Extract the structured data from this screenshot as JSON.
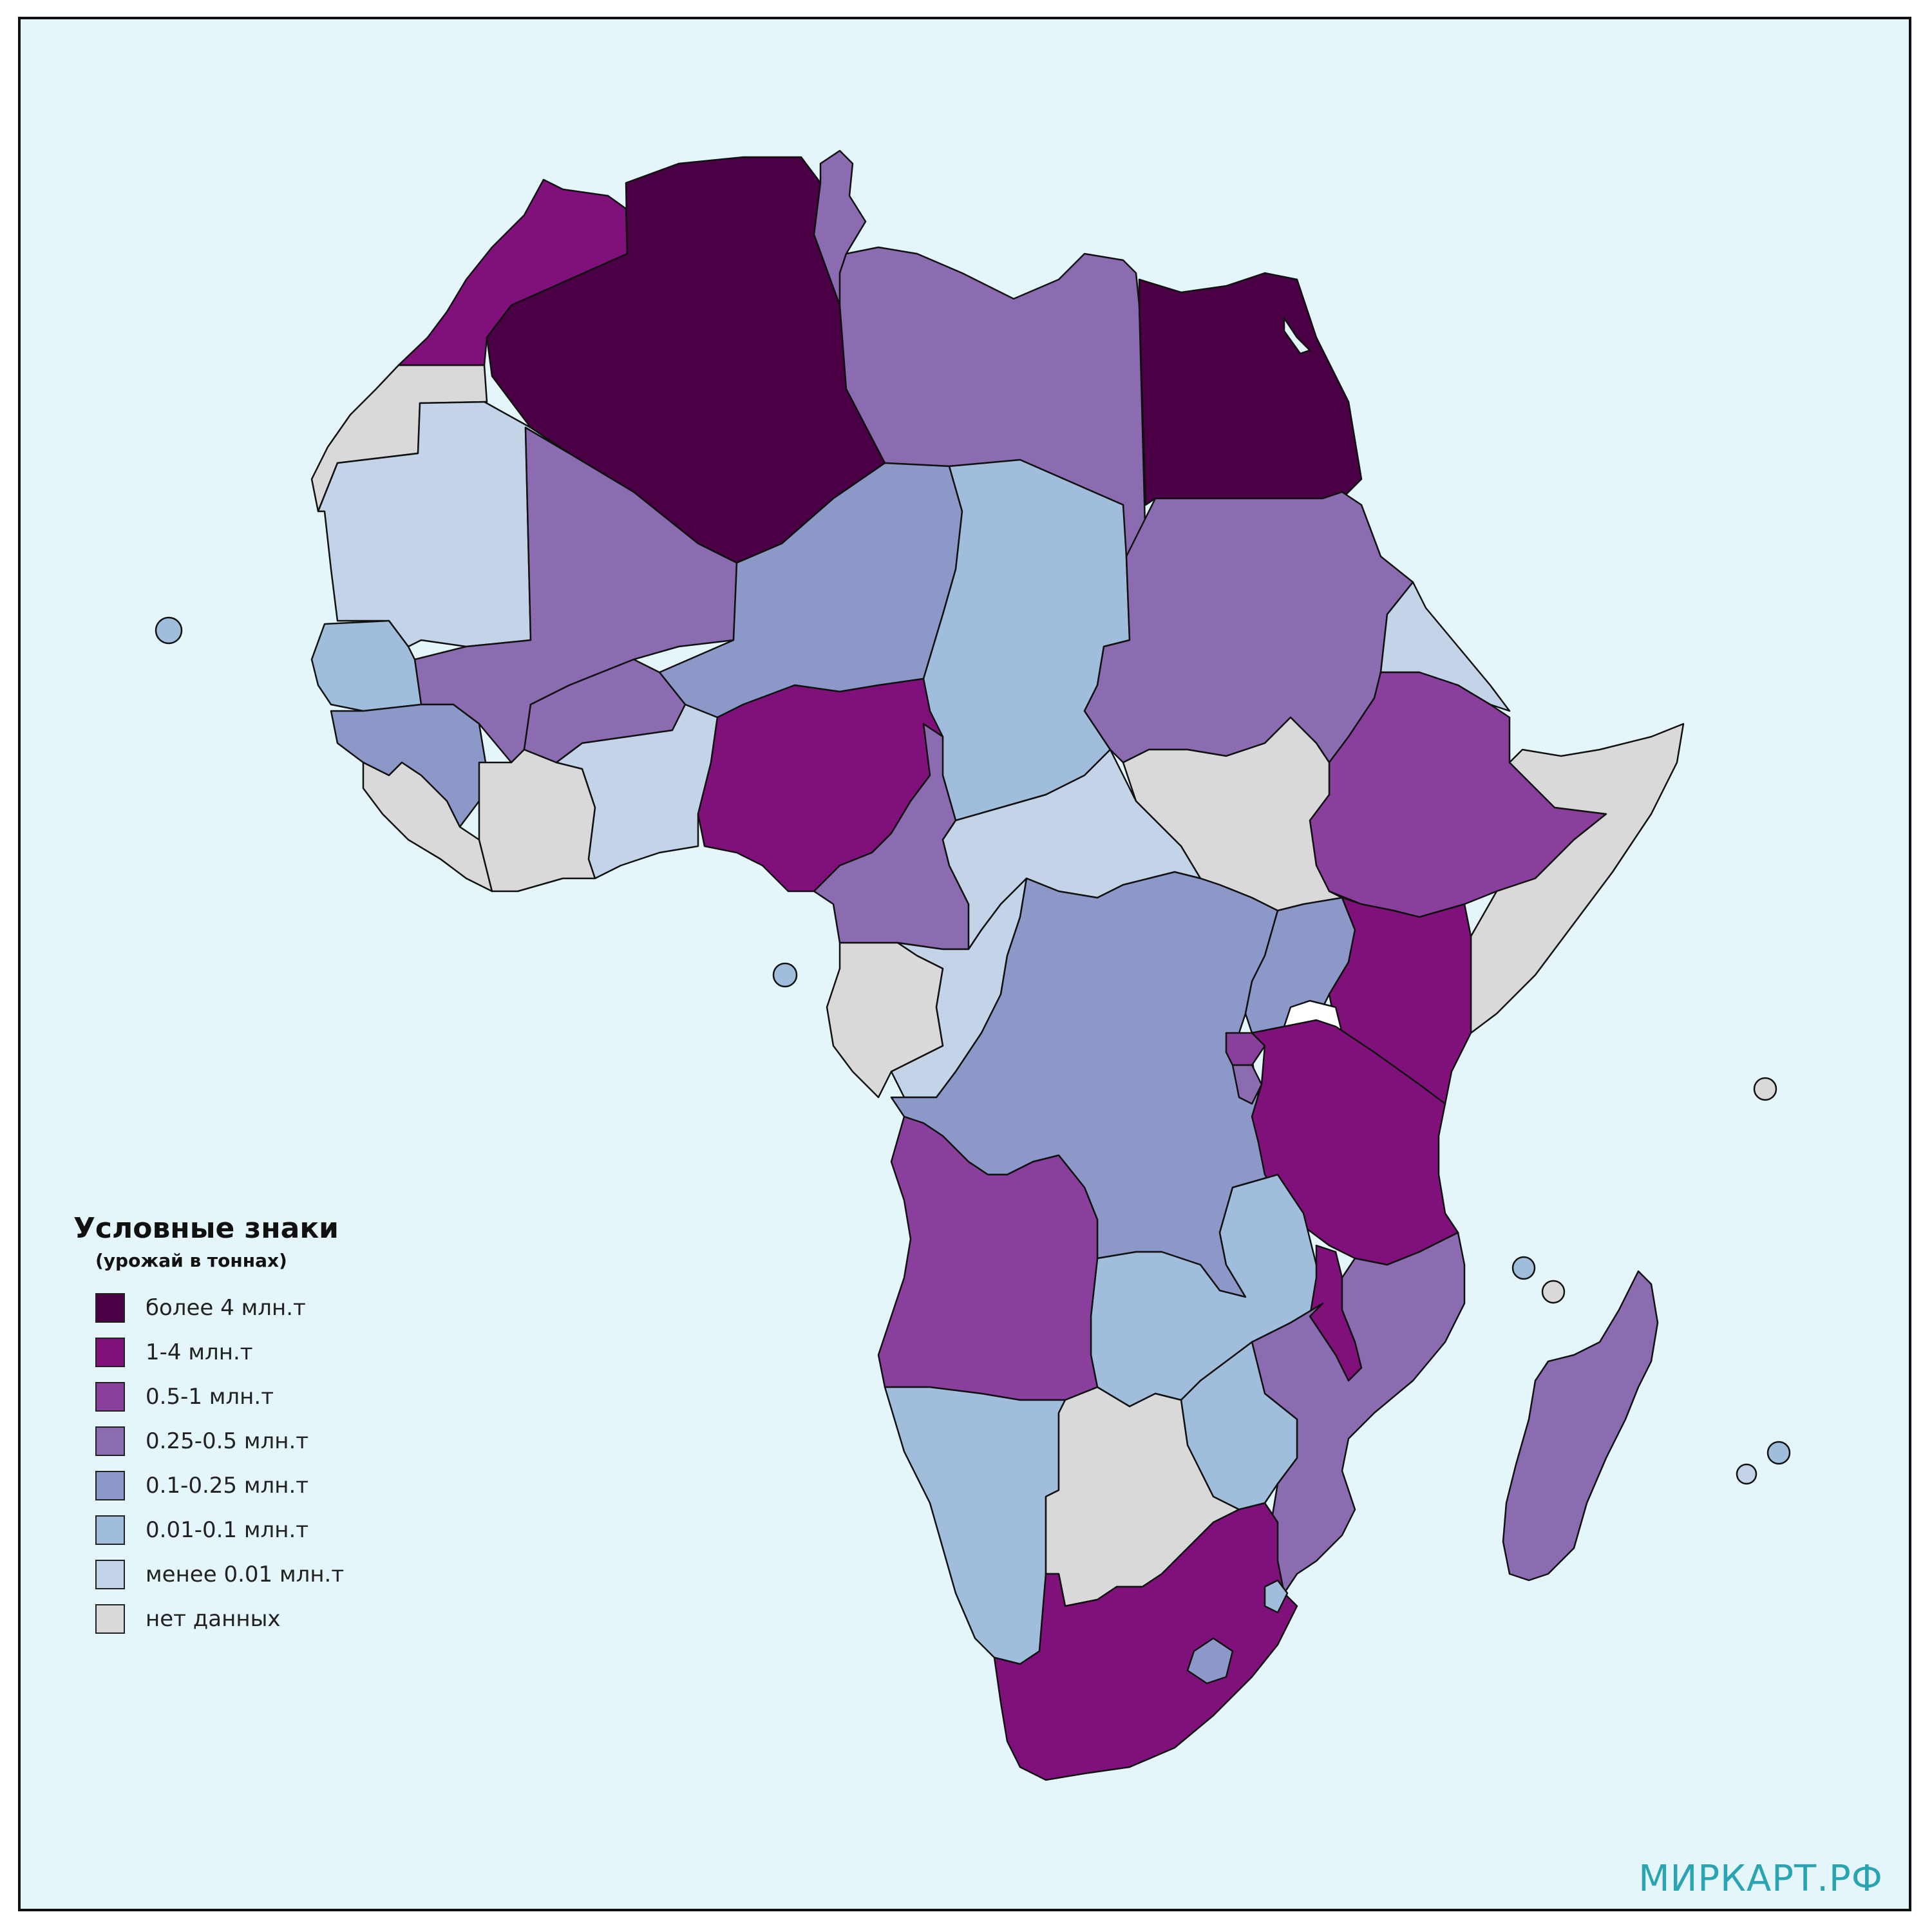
{
  "legend": {
    "title": "Условные знаки",
    "subtitle": "(урожай в тоннах)",
    "items": [
      {
        "label": "более 4 млн.т",
        "color": "#4b0045"
      },
      {
        "label": "1-4 млн.т",
        "color": "#81117a"
      },
      {
        "label": "0.5-1 млн.т",
        "color": "#8a3f9d"
      },
      {
        "label": "0.25-0.5 млн.т",
        "color": "#8b6cb0"
      },
      {
        "label": "0.1-0.25 млн.т",
        "color": "#8b98c8"
      },
      {
        "label": "0.01-0.1 млн.т",
        "color": "#a0bedc"
      },
      {
        "label": "менее 0.01 млн.т",
        "color": "#c3d3e8"
      },
      {
        "label": "нет данных",
        "color": "#d9d9d9"
      }
    ]
  },
  "watermark": "МИРКАРТ.РФ",
  "colors": {
    "ocean": "#e4f6f9",
    "border": "#111111",
    "lake": "#ffffff"
  },
  "regions": [
    {
      "id": "algeria",
      "category": "более 4 млн.т"
    },
    {
      "id": "egypt",
      "category": "более 4 млн.т"
    },
    {
      "id": "morocco",
      "category": "1-4 млн.т"
    },
    {
      "id": "nigeria",
      "category": "1-4 млн.т"
    },
    {
      "id": "kenya",
      "category": "1-4 млн.т"
    },
    {
      "id": "tanzania",
      "category": "1-4 млн.т"
    },
    {
      "id": "malawi",
      "category": "1-4 млн.т"
    },
    {
      "id": "south-africa",
      "category": "1-4 млн.т"
    },
    {
      "id": "ethiopia",
      "category": "0.5-1 млн.т"
    },
    {
      "id": "angola",
      "category": "0.5-1 млн.т"
    },
    {
      "id": "rwanda",
      "category": "0.5-1 млн.т"
    },
    {
      "id": "tunisia",
      "category": "0.25-0.5 млн.т"
    },
    {
      "id": "libya",
      "category": "0.25-0.5 млн.т"
    },
    {
      "id": "sudan",
      "category": "0.25-0.5 млн.т"
    },
    {
      "id": "mali",
      "category": "0.25-0.5 млн.т"
    },
    {
      "id": "burkina-faso",
      "category": "0.25-0.5 млн.т"
    },
    {
      "id": "cameroon",
      "category": "0.25-0.5 млн.т"
    },
    {
      "id": "mozambique",
      "category": "0.25-0.5 млн.т"
    },
    {
      "id": "madagascar",
      "category": "0.25-0.5 млн.т"
    },
    {
      "id": "burundi",
      "category": "0.25-0.5 млн.т"
    },
    {
      "id": "niger",
      "category": "0.1-0.25 млн.т"
    },
    {
      "id": "dr-congo",
      "category": "0.1-0.25 млн.т"
    },
    {
      "id": "guinea",
      "category": "0.1-0.25 млн.т"
    },
    {
      "id": "uganda",
      "category": "0.1-0.25 млн.т"
    },
    {
      "id": "lesotho",
      "category": "0.1-0.25 млн.т"
    },
    {
      "id": "chad",
      "category": "0.01-0.1 млн.т"
    },
    {
      "id": "senegal",
      "category": "0.01-0.1 млн.т"
    },
    {
      "id": "zambia",
      "category": "0.01-0.1 млн.т"
    },
    {
      "id": "zimbabwe",
      "category": "0.01-0.1 млн.т"
    },
    {
      "id": "namibia",
      "category": "0.01-0.1 млн.т"
    },
    {
      "id": "cape-verde",
      "category": "0.01-0.1 млн.т"
    },
    {
      "id": "mauritania",
      "category": "менее 0.01 млн.т"
    },
    {
      "id": "ghana-togo-benin",
      "category": "менее 0.01 млн.т"
    },
    {
      "id": "car",
      "category": "менее 0.01 млн.т"
    },
    {
      "id": "congo",
      "category": "менее 0.01 млн.т"
    },
    {
      "id": "eritrea",
      "category": "менее 0.01 млн.т"
    },
    {
      "id": "western-sahara",
      "category": "нет данных"
    },
    {
      "id": "sierra-leone-liberia",
      "category": "нет данных"
    },
    {
      "id": "cote-divoire",
      "category": "нет данных"
    },
    {
      "id": "south-sudan",
      "category": "нет данных"
    },
    {
      "id": "somalia",
      "category": "нет данных"
    },
    {
      "id": "gabon",
      "category": "нет данных"
    },
    {
      "id": "botswana",
      "category": "нет данных"
    }
  ]
}
